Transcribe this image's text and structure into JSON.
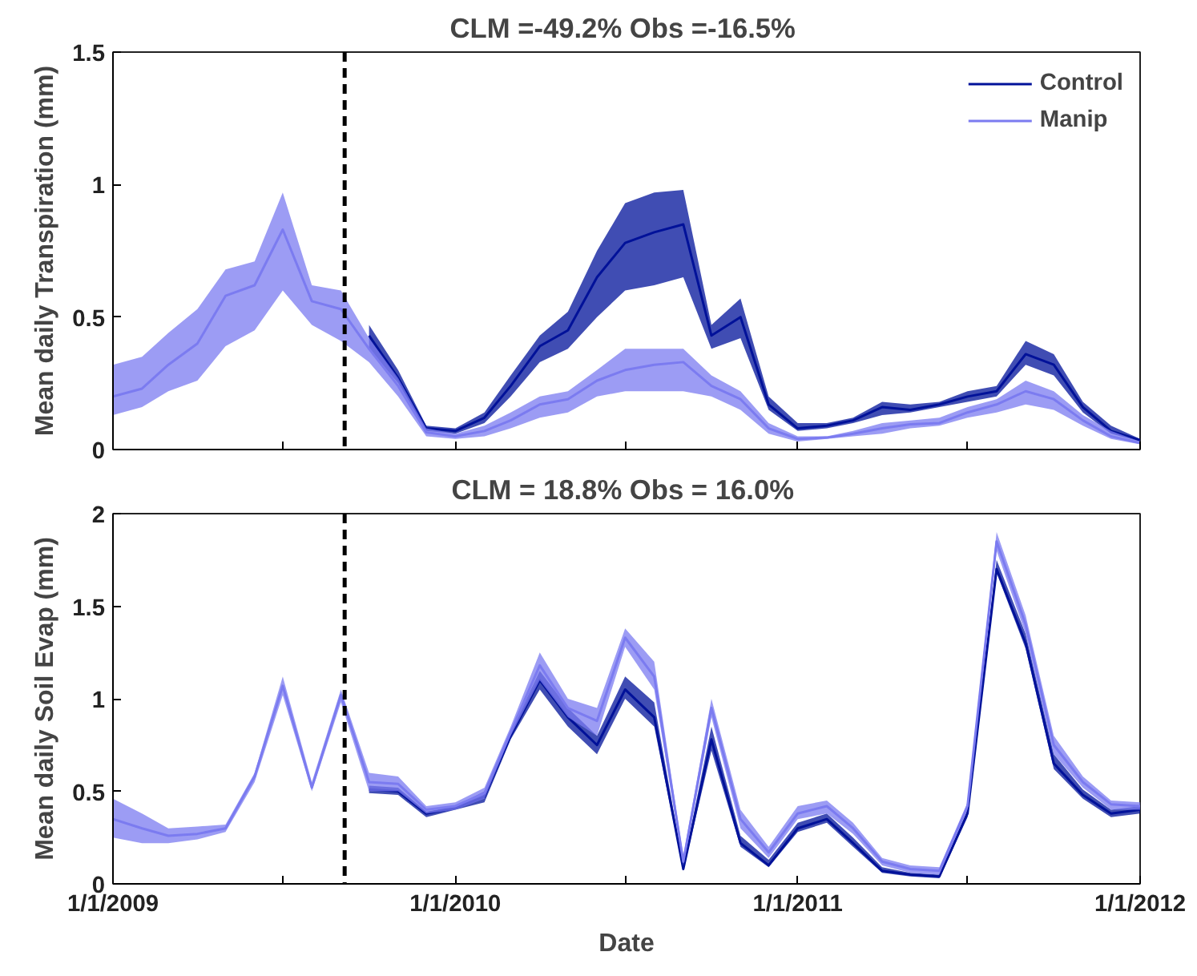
{
  "chart_data": [
    {
      "type": "line",
      "title": "CLM =-49.2%  Obs =-16.5%",
      "ylabel": "Mean daily Transpiration (mm)",
      "x": [
        "2009-01-01",
        "2009-02-01",
        "2009-03-01",
        "2009-04-01",
        "2009-05-01",
        "2009-06-01",
        "2009-07-01",
        "2009-08-01",
        "2009-09-01",
        "2009-10-01",
        "2009-11-01",
        "2009-12-01",
        "2010-01-01",
        "2010-02-01",
        "2010-03-01",
        "2010-04-01",
        "2010-05-01",
        "2010-06-01",
        "2010-07-01",
        "2010-08-01",
        "2010-09-01",
        "2010-10-01",
        "2010-11-01",
        "2010-12-01",
        "2011-01-01",
        "2011-02-01",
        "2011-03-01",
        "2011-04-01",
        "2011-05-01",
        "2011-06-01",
        "2011-07-01",
        "2011-08-01",
        "2011-09-01",
        "2011-10-01",
        "2011-11-01",
        "2011-12-01",
        "2012-01-01"
      ],
      "series": [
        {
          "name": "Control",
          "color": "#001199",
          "values": [
            null,
            null,
            null,
            null,
            null,
            null,
            null,
            null,
            null,
            0.43,
            0.27,
            0.08,
            0.07,
            0.12,
            0.24,
            0.39,
            0.45,
            0.65,
            0.78,
            0.82,
            0.85,
            0.43,
            0.5,
            0.17,
            0.08,
            0.09,
            0.11,
            0.16,
            0.15,
            0.17,
            0.2,
            0.22,
            0.36,
            0.32,
            0.16,
            0.07,
            0.035
          ],
          "lower": [
            null,
            null,
            null,
            null,
            null,
            null,
            null,
            null,
            null,
            0.38,
            0.25,
            0.07,
            0.06,
            0.1,
            0.2,
            0.33,
            0.38,
            0.5,
            0.6,
            0.62,
            0.65,
            0.38,
            0.42,
            0.15,
            0.07,
            0.08,
            0.1,
            0.13,
            0.14,
            0.16,
            0.18,
            0.2,
            0.32,
            0.28,
            0.14,
            0.06,
            0.03
          ],
          "upper": [
            null,
            null,
            null,
            null,
            null,
            null,
            null,
            null,
            null,
            0.47,
            0.3,
            0.09,
            0.08,
            0.14,
            0.28,
            0.43,
            0.52,
            0.75,
            0.93,
            0.97,
            0.98,
            0.47,
            0.57,
            0.2,
            0.1,
            0.1,
            0.12,
            0.18,
            0.17,
            0.18,
            0.22,
            0.24,
            0.41,
            0.36,
            0.18,
            0.09,
            0.04
          ]
        },
        {
          "name": "Manip",
          "color": "#7b7bf0",
          "values": [
            0.2,
            0.23,
            0.32,
            0.4,
            0.58,
            0.62,
            0.83,
            0.56,
            0.53,
            0.38,
            0.24,
            0.065,
            0.05,
            0.07,
            0.11,
            0.17,
            0.19,
            0.26,
            0.3,
            0.32,
            0.33,
            0.24,
            0.19,
            0.08,
            0.04,
            0.045,
            0.06,
            0.08,
            0.095,
            0.1,
            0.14,
            0.17,
            0.22,
            0.19,
            0.11,
            0.05,
            0.025
          ],
          "lower": [
            0.13,
            0.16,
            0.22,
            0.26,
            0.39,
            0.45,
            0.6,
            0.47,
            0.41,
            0.33,
            0.2,
            0.05,
            0.04,
            0.05,
            0.08,
            0.12,
            0.14,
            0.2,
            0.22,
            0.22,
            0.22,
            0.2,
            0.15,
            0.06,
            0.03,
            0.04,
            0.05,
            0.06,
            0.08,
            0.09,
            0.12,
            0.14,
            0.17,
            0.15,
            0.09,
            0.04,
            0.02
          ],
          "upper": [
            0.32,
            0.35,
            0.44,
            0.53,
            0.68,
            0.71,
            0.97,
            0.62,
            0.6,
            0.42,
            0.27,
            0.08,
            0.06,
            0.09,
            0.14,
            0.2,
            0.22,
            0.3,
            0.38,
            0.38,
            0.38,
            0.28,
            0.22,
            0.1,
            0.05,
            0.05,
            0.07,
            0.1,
            0.11,
            0.12,
            0.16,
            0.19,
            0.26,
            0.22,
            0.13,
            0.07,
            0.03
          ]
        }
      ],
      "xlim": [
        "2009-01-01",
        "2012-01-01"
      ],
      "xticks": [
        {
          "value": "2009-01-01",
          "label": null
        },
        {
          "value": "2009-07-01",
          "label": null
        },
        {
          "value": "2010-01-01",
          "label": null
        },
        {
          "value": "2010-07-01",
          "label": null
        },
        {
          "value": "2011-01-01",
          "label": null
        },
        {
          "value": "2011-07-01",
          "label": null
        },
        {
          "value": "2012-01-01",
          "label": null
        }
      ],
      "ylim": [
        0,
        1.5
      ],
      "yticks": [
        0,
        0.5,
        1,
        1.5
      ],
      "tick_labels": "y",
      "grid": false,
      "legend": "top right",
      "ref_lines": [
        {
          "axis": "x",
          "value": "2009-09-05",
          "color": "#000000",
          "line_style": "dashed"
        }
      ]
    },
    {
      "type": "line",
      "title": "CLM = 18.8%  Obs = 16.0%",
      "xlabel": "Date",
      "ylabel": "Mean daily Soil Evap (mm)",
      "x": [
        "2009-01-01",
        "2009-02-01",
        "2009-03-01",
        "2009-04-01",
        "2009-05-01",
        "2009-06-01",
        "2009-07-01",
        "2009-08-01",
        "2009-09-01",
        "2009-10-01",
        "2009-11-01",
        "2009-12-01",
        "2010-01-01",
        "2010-02-01",
        "2010-03-01",
        "2010-04-01",
        "2010-05-01",
        "2010-06-01",
        "2010-07-01",
        "2010-08-01",
        "2010-09-01",
        "2010-10-01",
        "2010-11-01",
        "2010-12-01",
        "2011-01-01",
        "2011-02-01",
        "2011-03-01",
        "2011-04-01",
        "2011-05-01",
        "2011-06-01",
        "2011-07-01",
        "2011-08-01",
        "2011-09-01",
        "2011-10-01",
        "2011-11-01",
        "2011-12-01",
        "2012-01-01"
      ],
      "series": [
        {
          "color": "#001199",
          "values": [
            null,
            null,
            null,
            null,
            null,
            null,
            null,
            null,
            null,
            0.51,
            0.5,
            0.38,
            0.41,
            0.47,
            0.8,
            1.1,
            0.9,
            0.75,
            1.05,
            0.9,
            0.08,
            0.78,
            0.22,
            0.1,
            0.3,
            0.35,
            0.22,
            0.07,
            0.05,
            0.04,
            0.38,
            1.7,
            1.3,
            0.65,
            0.48,
            0.38,
            0.4
          ],
          "lower": [
            null,
            null,
            null,
            null,
            null,
            null,
            null,
            null,
            null,
            0.49,
            0.48,
            0.36,
            0.4,
            0.44,
            0.78,
            1.05,
            0.85,
            0.7,
            1.0,
            0.85,
            0.07,
            0.72,
            0.2,
            0.09,
            0.28,
            0.33,
            0.2,
            0.06,
            0.04,
            0.03,
            0.36,
            1.68,
            1.27,
            0.62,
            0.46,
            0.36,
            0.38
          ],
          "upper": [
            null,
            null,
            null,
            null,
            null,
            null,
            null,
            null,
            null,
            0.53,
            0.52,
            0.39,
            0.42,
            0.5,
            0.82,
            1.15,
            0.95,
            0.8,
            1.12,
            0.98,
            0.1,
            0.85,
            0.26,
            0.13,
            0.33,
            0.38,
            0.25,
            0.09,
            0.06,
            0.05,
            0.4,
            1.75,
            1.35,
            0.7,
            0.51,
            0.4,
            0.42
          ]
        },
        {
          "color": "#7b7bf0",
          "values": [
            0.35,
            0.3,
            0.26,
            0.27,
            0.3,
            0.58,
            1.07,
            0.52,
            1.02,
            0.55,
            0.54,
            0.4,
            0.42,
            0.49,
            0.82,
            1.18,
            0.95,
            0.88,
            1.33,
            1.12,
            0.12,
            0.95,
            0.35,
            0.17,
            0.38,
            0.42,
            0.3,
            0.12,
            0.08,
            0.07,
            0.42,
            1.85,
            1.4,
            0.75,
            0.55,
            0.43,
            0.42
          ],
          "lower": [
            0.25,
            0.22,
            0.22,
            0.24,
            0.28,
            0.55,
            1.02,
            0.5,
            0.98,
            0.5,
            0.5,
            0.38,
            0.4,
            0.46,
            0.8,
            1.1,
            0.9,
            0.8,
            1.28,
            1.05,
            0.1,
            0.9,
            0.3,
            0.14,
            0.35,
            0.38,
            0.27,
            0.1,
            0.06,
            0.05,
            0.4,
            1.8,
            1.35,
            0.7,
            0.52,
            0.4,
            0.4
          ],
          "upper": [
            0.46,
            0.38,
            0.3,
            0.31,
            0.32,
            0.6,
            1.12,
            0.55,
            1.05,
            0.6,
            0.58,
            0.42,
            0.44,
            0.52,
            0.85,
            1.25,
            1.0,
            0.95,
            1.38,
            1.2,
            0.15,
            1.0,
            0.4,
            0.2,
            0.42,
            0.45,
            0.33,
            0.14,
            0.1,
            0.09,
            0.44,
            1.9,
            1.45,
            0.8,
            0.58,
            0.45,
            0.44
          ]
        }
      ],
      "xlim": [
        "2009-01-01",
        "2012-01-01"
      ],
      "xticks": [
        {
          "value": "2009-01-01",
          "label": "1/1/2009"
        },
        {
          "value": "2009-07-01",
          "label": null
        },
        {
          "value": "2010-01-01",
          "label": "1/1/2010"
        },
        {
          "value": "2010-07-01",
          "label": null
        },
        {
          "value": "2011-01-01",
          "label": "1/1/2011"
        },
        {
          "value": "2011-07-01",
          "label": null
        },
        {
          "value": "2012-01-01",
          "label": "1/1/2012"
        }
      ],
      "ylim": [
        0,
        2
      ],
      "yticks": [
        0,
        0.5,
        1,
        1.5,
        2
      ],
      "grid": false,
      "ref_lines": [
        {
          "axis": "x",
          "value": "2009-09-05",
          "color": "#000000",
          "line_style": "dashed"
        }
      ]
    }
  ]
}
